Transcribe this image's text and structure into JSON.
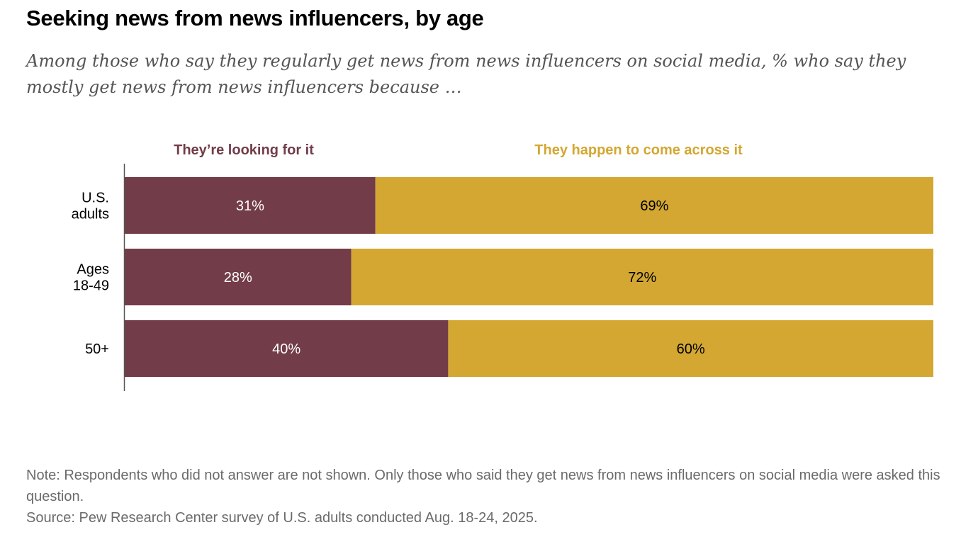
{
  "header": {
    "title": "Seeking news from news influencers, by age",
    "subtitle": "Among those who say they regularly get news from news influencers on social media, % who say they mostly get news from news influencers because …"
  },
  "colors": {
    "looking": "#723C48",
    "happen": "#D3A732",
    "axis": "#555555",
    "footer_text": "#6B6B6B"
  },
  "chart_data": {
    "type": "bar",
    "orientation": "horizontal",
    "stacked": true,
    "title": "Seeking news from news influencers, by age",
    "categories": [
      [
        "U.S.",
        "adults"
      ],
      [
        "Ages",
        "18-49"
      ],
      [
        "50+"
      ]
    ],
    "series": [
      {
        "name": "They’re looking for it",
        "values": [
          31,
          28,
          40
        ],
        "labels": [
          "31%",
          "28%",
          "40%"
        ],
        "color": "#723C48",
        "label_color": "#FFFFFF"
      },
      {
        "name": "They happen to come across it",
        "values": [
          69,
          72,
          60
        ],
        "labels": [
          "69%",
          "72%",
          "60%"
        ],
        "color": "#D3A732",
        "label_color": "#000000"
      }
    ],
    "xlim": [
      0,
      100
    ],
    "xlabel": "",
    "ylabel": "",
    "grid": false,
    "legend": "top"
  },
  "footer": {
    "note": "Note: Respondents who did not answer are not shown. Only those who said they get news from news influencers on social media were asked this question.",
    "source": "Source: Pew Research Center survey of U.S. adults conducted Aug. 18-24, 2025."
  }
}
